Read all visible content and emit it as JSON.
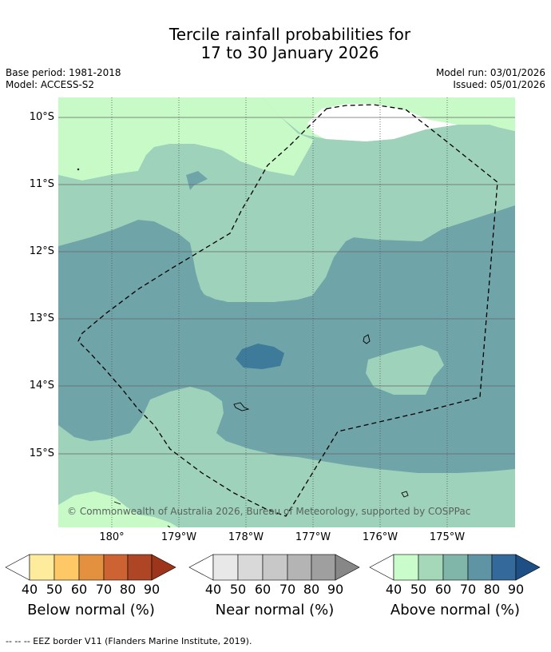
{
  "title": {
    "line1": "Tercile rainfall probabilities for",
    "line2": "17 to 30 January 2026"
  },
  "meta": {
    "base_period": "Base period: 1981-2018",
    "model": "Model: ACCESS-S2",
    "model_run": "Model run: 03/01/2026",
    "issued": "Issued: 05/01/2026"
  },
  "map": {
    "latitude_labels": [
      "10°S",
      "11°S",
      "12°S",
      "13°S",
      "14°S",
      "15°S"
    ],
    "longitude_labels": [
      "180°",
      "179°W",
      "178°W",
      "177°W",
      "176°W",
      "175°W"
    ],
    "copyright": "© Commonwealth of Australia 2026, Bureau of Meteorology, supported by COSPPac"
  },
  "legends": [
    {
      "title": "Below normal (%)",
      "ticks": [
        "40",
        "50",
        "60",
        "70",
        "80",
        "90"
      ],
      "colors": [
        "#ffffff",
        "#feeb9c",
        "#fdc865",
        "#e4913f",
        "#cd6332",
        "#ae4524",
        "#9c351b"
      ]
    },
    {
      "title": "Near normal (%)",
      "ticks": [
        "40",
        "50",
        "60",
        "70",
        "80",
        "90"
      ],
      "colors": [
        "#ffffff",
        "#e8e8e8",
        "#d9d9d9",
        "#c8c8c8",
        "#b4b4b4",
        "#9f9f9f",
        "#878787"
      ]
    },
    {
      "title": "Above normal (%)",
      "ticks": [
        "40",
        "50",
        "60",
        "70",
        "80",
        "90"
      ],
      "colors": [
        "#ffffff",
        "#c9fbcb",
        "#a4d8b8",
        "#80b6a9",
        "#5f94a4",
        "#33699b",
        "#1d4f85"
      ]
    }
  ],
  "footer": "--  --  -- EEZ border V11 (Flanders Marine Institute, 2019)."
}
